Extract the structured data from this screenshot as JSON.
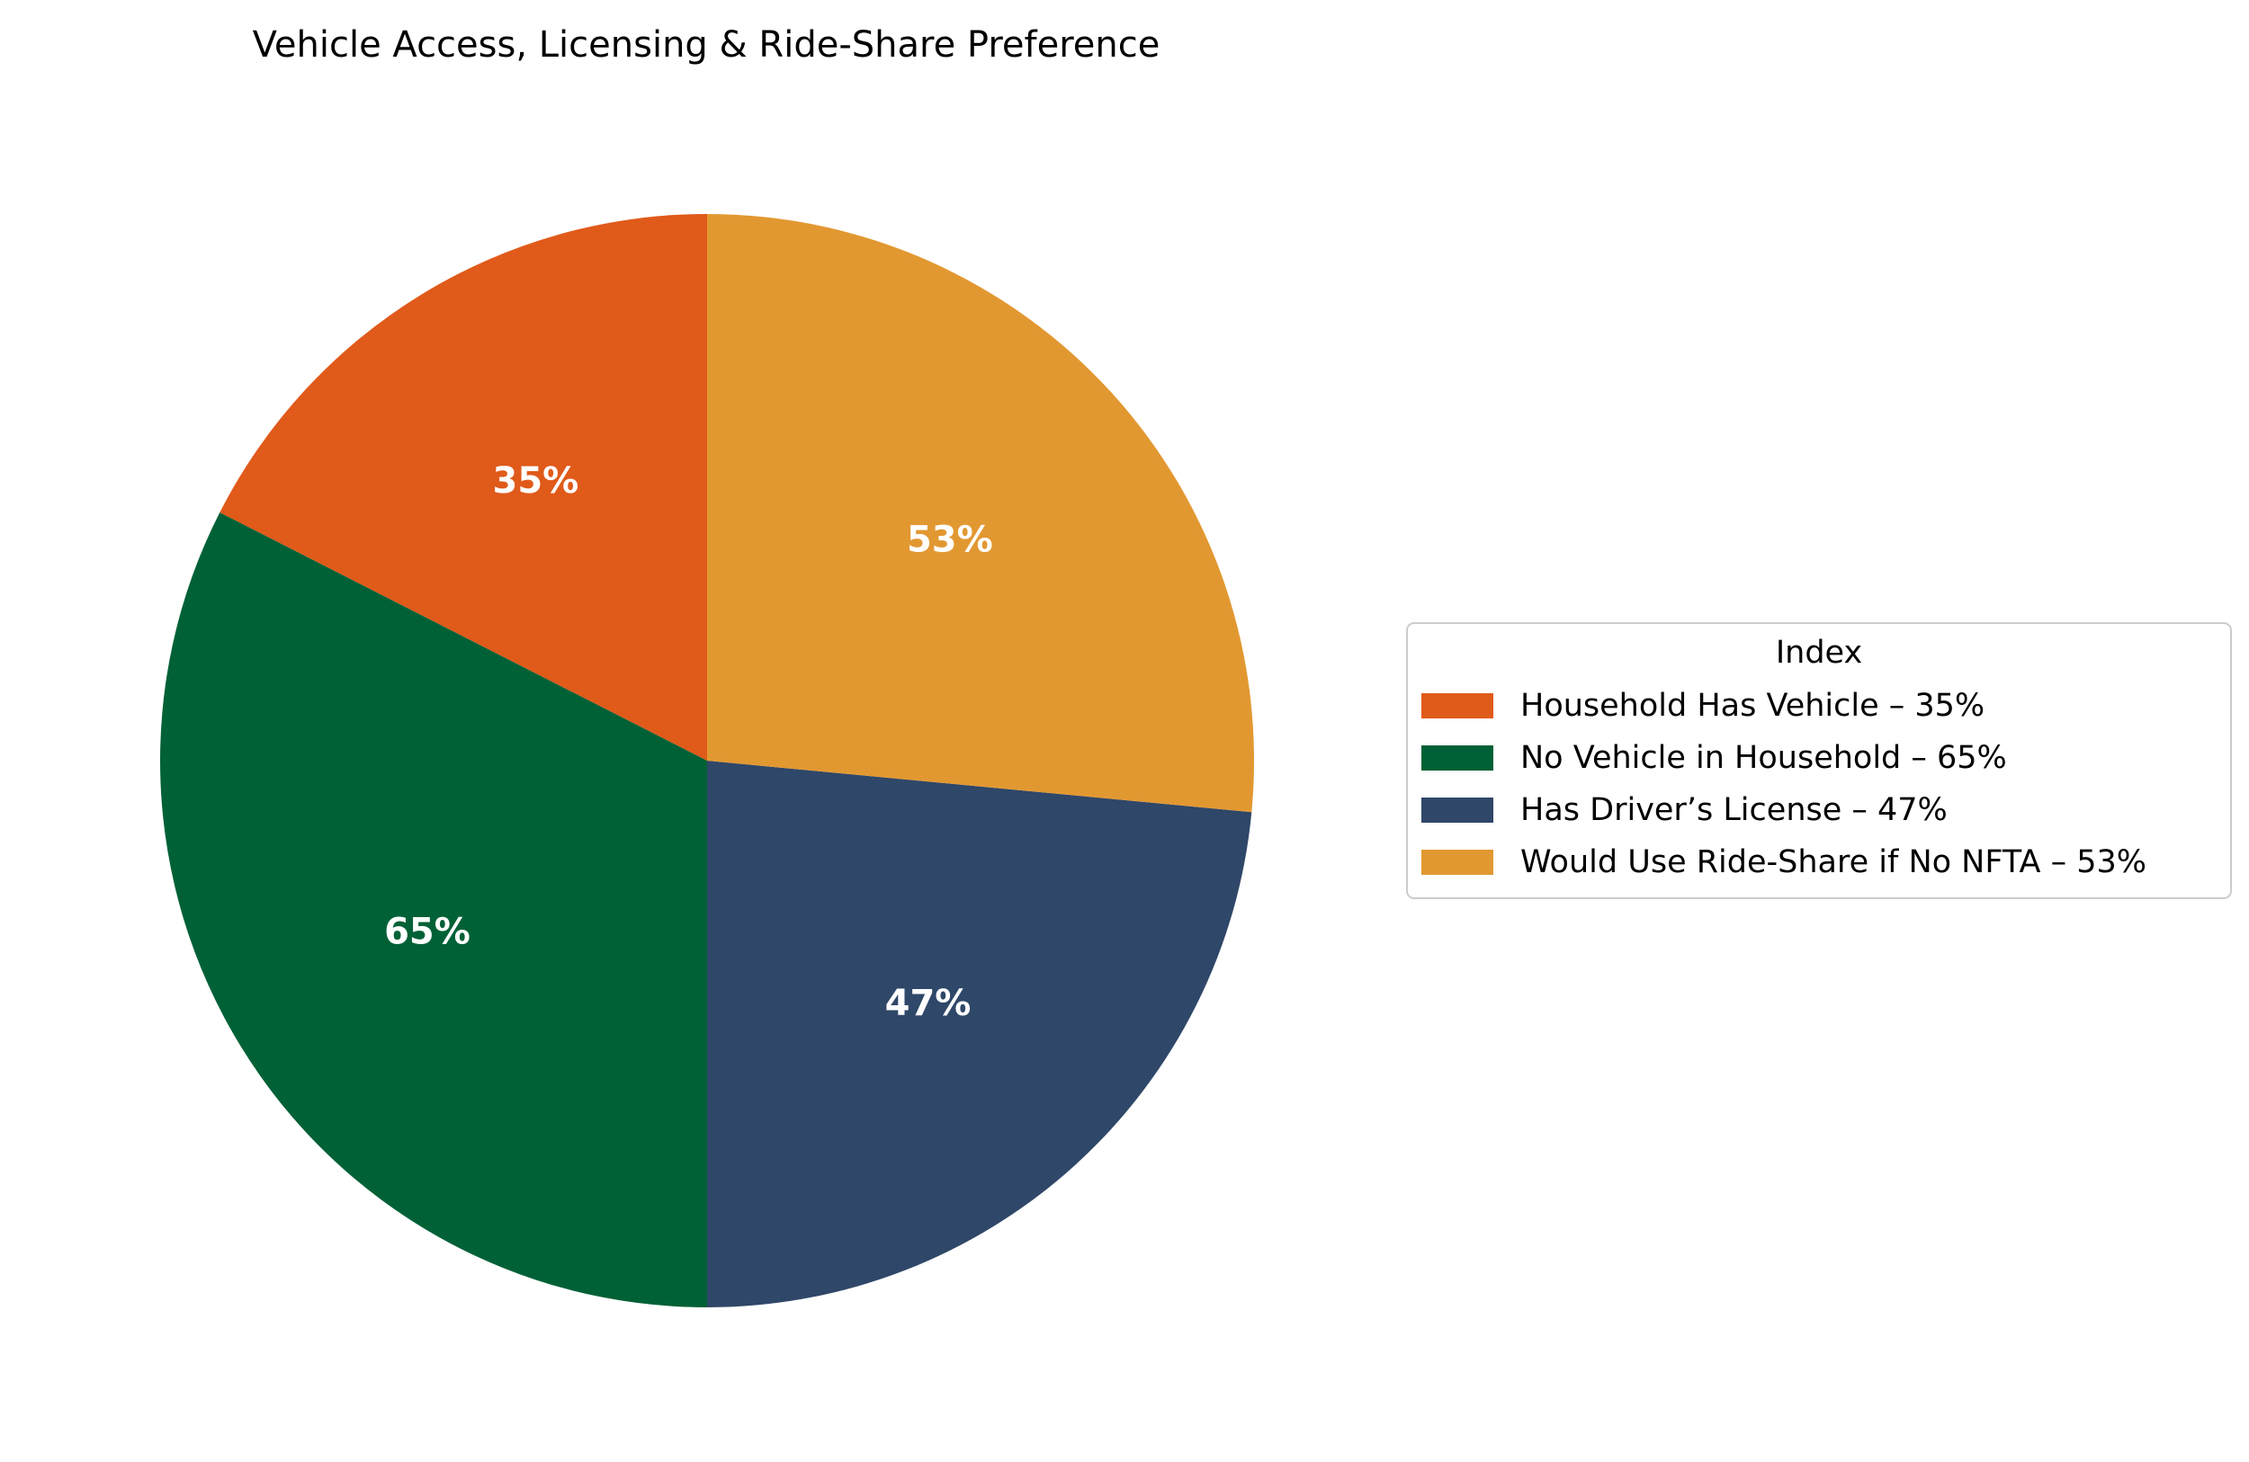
{
  "chart_data": {
    "type": "pie",
    "title": "Vehicle Access, Licensing & Ride-Share Preference",
    "categories": [
      "Household Has Vehicle – 35%",
      "No Vehicle in Household – 65%",
      "Has Driver’s License – 47%",
      "Would Use Ride-Share if No NFTA – 53%"
    ],
    "values": [
      35,
      65,
      47,
      53
    ],
    "slice_labels": [
      "35%",
      "65%",
      "47%",
      "53%"
    ],
    "colors": [
      "#E05A1A",
      "#016136",
      "#2F4768",
      "#E29831"
    ],
    "start_angle_deg": 90,
    "direction": "counterclockwise",
    "legend": {
      "title": "Index",
      "placement": "center-right"
    }
  }
}
